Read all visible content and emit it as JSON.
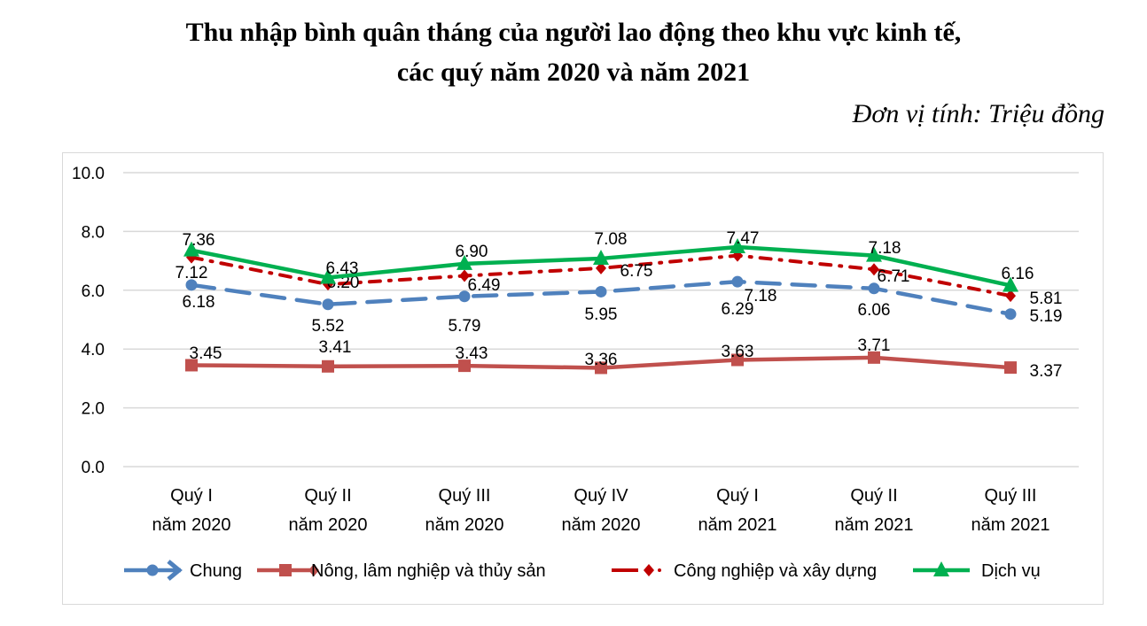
{
  "chart_data": {
    "type": "line",
    "title": "Thu nhập bình quân tháng của người lao động theo khu vực kinh tế,",
    "subtitle": "các quý năm 2020 và năm 2021",
    "unit": "Đơn vị tính: Triệu đồng",
    "categories": [
      [
        "Quý I",
        "năm 2020"
      ],
      [
        "Quý II",
        "năm 2020"
      ],
      [
        "Quý III",
        "năm 2020"
      ],
      [
        "Quý IV",
        "năm 2020"
      ],
      [
        "Quý I",
        "năm 2021"
      ],
      [
        "Quý II",
        "năm 2021"
      ],
      [
        "Quý III",
        "năm 2021"
      ]
    ],
    "ylim": [
      0,
      10
    ],
    "yticks": [
      "0.0",
      "2.0",
      "4.0",
      "6.0",
      "8.0",
      "10.0"
    ],
    "grid": true,
    "legend_position": "bottom",
    "series": [
      {
        "name": "Chung",
        "color": "#4f81bd",
        "values": [
          6.18,
          5.52,
          5.79,
          5.95,
          6.29,
          6.06,
          5.19
        ],
        "labels": [
          "6.18",
          "5.52",
          "5.79",
          "5.95",
          "6.29",
          "6.06",
          "5.19"
        ]
      },
      {
        "name": "Nông, lâm nghiệp và thủy sản",
        "color": "#c0504d",
        "values": [
          3.45,
          3.41,
          3.43,
          3.36,
          3.63,
          3.71,
          3.37
        ],
        "labels": [
          "3.45",
          "3.41",
          "3.43",
          "3.36",
          "3.63",
          "3.71",
          "3.37"
        ]
      },
      {
        "name": "Công nghiệp và xây dựng",
        "color": "#c00000",
        "values": [
          7.12,
          6.2,
          6.49,
          6.75,
          7.18,
          6.71,
          5.81
        ],
        "labels": [
          "7.12",
          "6.20",
          "6.49",
          "6.75",
          "7.18",
          "6.71",
          "5.81"
        ]
      },
      {
        "name": "Dịch vụ",
        "color": "#00b050",
        "values": [
          7.36,
          6.43,
          6.9,
          7.08,
          7.47,
          7.18,
          6.16
        ],
        "labels": [
          "7.36",
          "6.43",
          "6.90",
          "7.08",
          "7.47",
          "7.18",
          "6.16"
        ]
      }
    ]
  }
}
